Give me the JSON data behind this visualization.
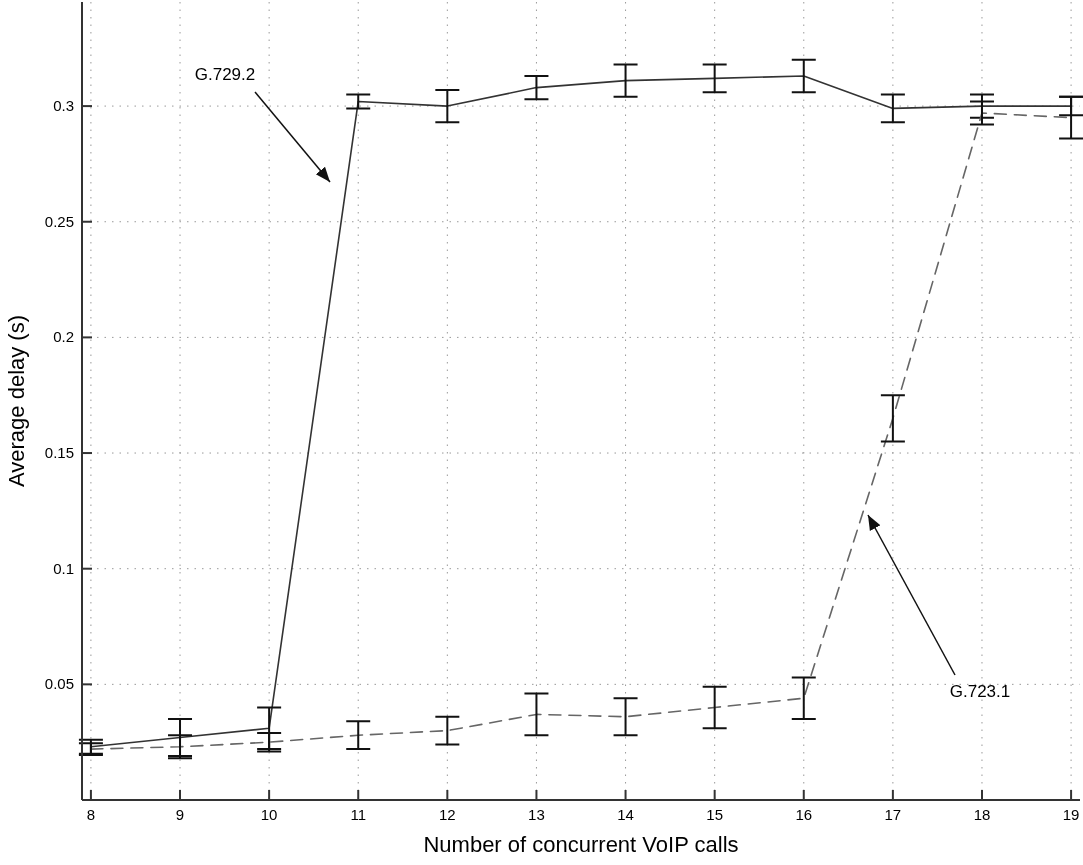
{
  "chart_data": {
    "type": "line",
    "xlabel": "Number of concurrent VoIP calls",
    "ylabel": "Average delay (s)",
    "x": [
      8,
      9,
      10,
      11,
      12,
      13,
      14,
      15,
      16,
      17,
      18,
      19
    ],
    "series": [
      {
        "color": "#333333",
        "line_style": "solid",
        "values": [
          0.023,
          0.027,
          0.031,
          0.302,
          0.3,
          0.308,
          0.311,
          0.312,
          0.313,
          0.299,
          0.3,
          0.3
        ],
        "errors": [
          0.003,
          0.008,
          0.009,
          0.003,
          0.007,
          0.005,
          0.007,
          0.006,
          0.007,
          0.006,
          0.005,
          0.004
        ]
      },
      {
        "color": "#666666",
        "line_style": "dashed",
        "values": [
          0.022,
          0.023,
          0.025,
          0.028,
          0.03,
          0.037,
          0.036,
          0.04,
          0.044,
          0.165,
          0.297,
          0.295
        ],
        "errors": [
          0.0025,
          0.005,
          0.004,
          0.006,
          0.006,
          0.009,
          0.008,
          0.009,
          0.009,
          0.01,
          0.005,
          0.009
        ]
      }
    ],
    "xlim": [
      7.9,
      19.1
    ],
    "ylim": [
      0,
      0.345
    ],
    "xticks": [
      8,
      9,
      10,
      11,
      12,
      13,
      14,
      15,
      16,
      17,
      18,
      19
    ],
    "yticks": [
      0.05,
      0.1,
      0.15,
      0.2,
      0.25,
      0.3
    ],
    "grid": true,
    "marker": "none",
    "annotations": [
      "G.729.2",
      "G.723.1"
    ]
  }
}
